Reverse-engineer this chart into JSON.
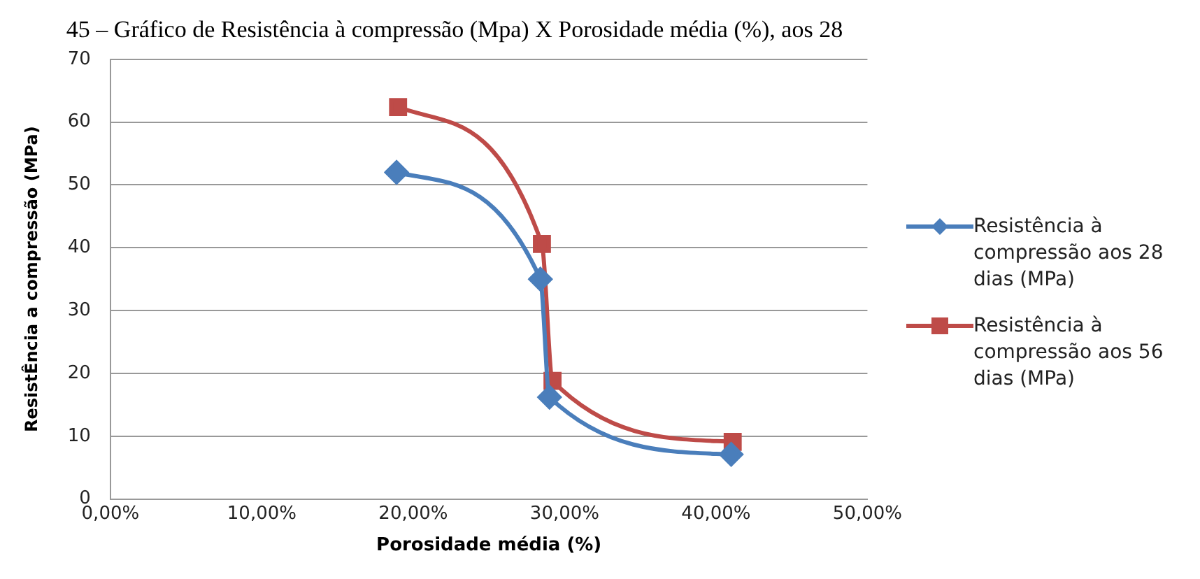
{
  "chart_data": {
    "type": "line",
    "title": "45 – Gráfico de Resistência à compressão (Mpa) X Porosidade média (%), aos 28",
    "xlabel": "Porosidade média (%)",
    "ylabel": "ResistÊncia a compressão (MPa)",
    "xlim": [
      0,
      50
    ],
    "xticks": [
      {
        "value": 0,
        "label": "0,00%"
      },
      {
        "value": 10,
        "label": "10,00%"
      },
      {
        "value": 20,
        "label": "20,00%"
      },
      {
        "value": 30,
        "label": "30,00%"
      },
      {
        "value": 40,
        "label": "40,00%"
      },
      {
        "value": 50,
        "label": "50,00%"
      }
    ],
    "ylim": [
      0,
      70
    ],
    "yticks": [
      0,
      10,
      20,
      30,
      40,
      50,
      60,
      70
    ],
    "grid": "y",
    "legend": "right",
    "line_style": "solid",
    "series": [
      {
        "name": "Resistência à compressão aos 28 dias (MPa)",
        "color": "#4a7ebb",
        "marker": "diamond",
        "x": [
          18.9,
          28.4,
          29.0,
          41.0
        ],
        "values": [
          52,
          35,
          16.2,
          7.1
        ]
      },
      {
        "name": "Resistência à compressão aos 56 dias (MPa)",
        "color": "#be4b48",
        "marker": "square",
        "x": [
          19.0,
          28.5,
          29.2,
          41.1
        ],
        "values": [
          62.4,
          40.6,
          18.8,
          9.1
        ]
      }
    ]
  }
}
